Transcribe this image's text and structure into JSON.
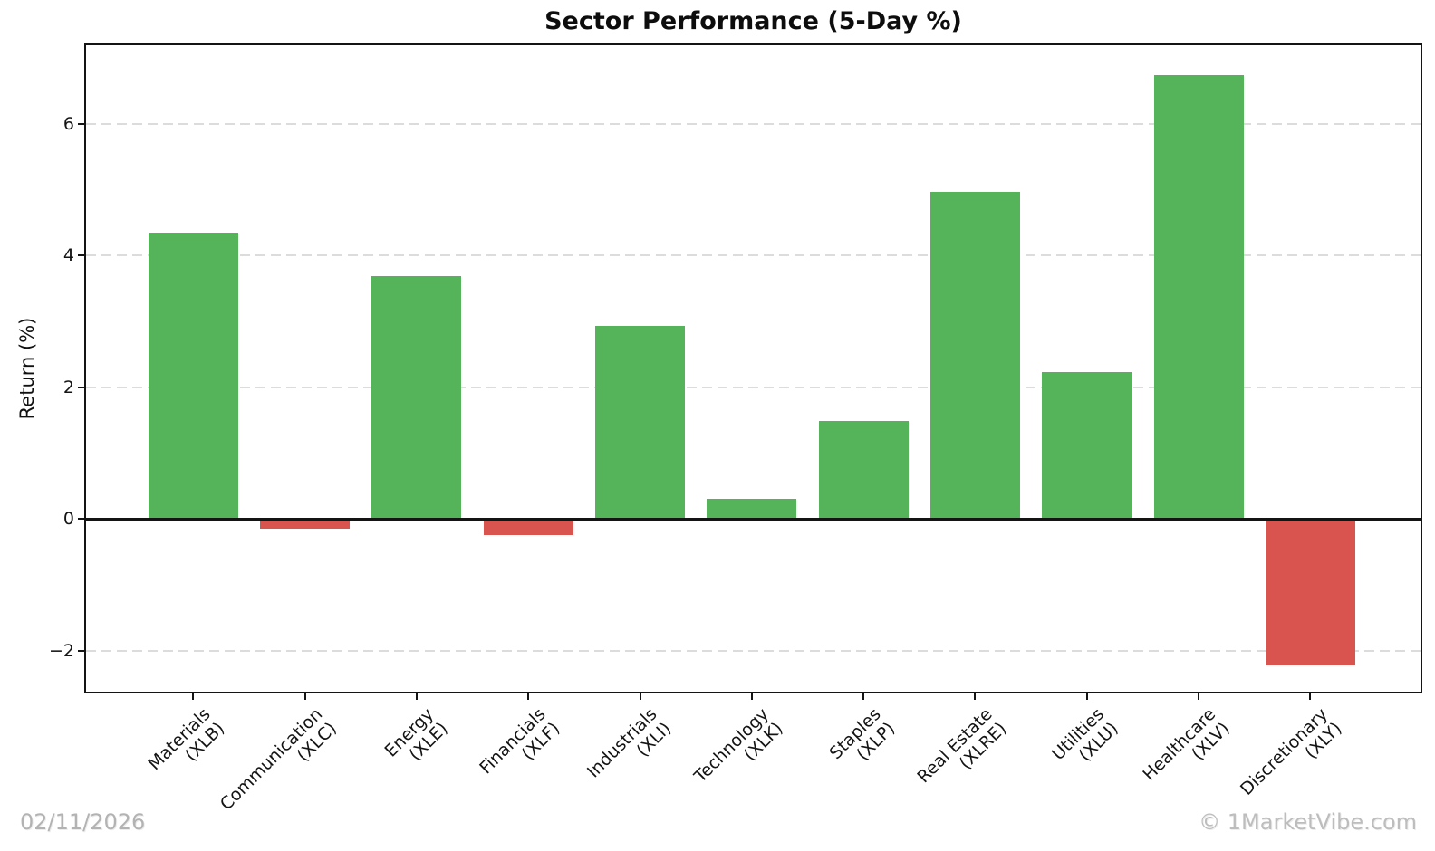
{
  "title": "Sector Performance (5-Day %)",
  "footer": {
    "date": "02/11/2026",
    "watermark": "© 1MarketVibe.com"
  },
  "chart_data": {
    "type": "bar",
    "title": "Sector Performance (5-Day %)",
    "xlabel": "",
    "ylabel": "Return (%)",
    "categories": [
      "Materials\n(XLB)",
      "Communication\n(XLC)",
      "Energy\n(XLE)",
      "Financials\n(XLF)",
      "Industrials\n(XLI)",
      "Technology\n(XLK)",
      "Staples\n(XLP)",
      "Real Estate\n(XLRE)",
      "Utilities\n(XLU)",
      "Healthcare\n(XLV)",
      "Discretionary\n(XLY)"
    ],
    "values": [
      4.34,
      -0.15,
      3.69,
      -0.24,
      2.93,
      0.31,
      1.49,
      4.97,
      2.23,
      6.73,
      -2.22
    ],
    "yticks": [
      -2,
      0,
      2,
      4,
      6
    ],
    "ylim": [
      -2.62,
      7.19
    ],
    "colors": {
      "positive": "#55b35a",
      "negative": "#d9534f",
      "grid": "#dcdcdc",
      "axis": "#141414"
    },
    "grid": {
      "axis": "y",
      "style": "dashed"
    },
    "zero_line": true,
    "legend": null
  }
}
